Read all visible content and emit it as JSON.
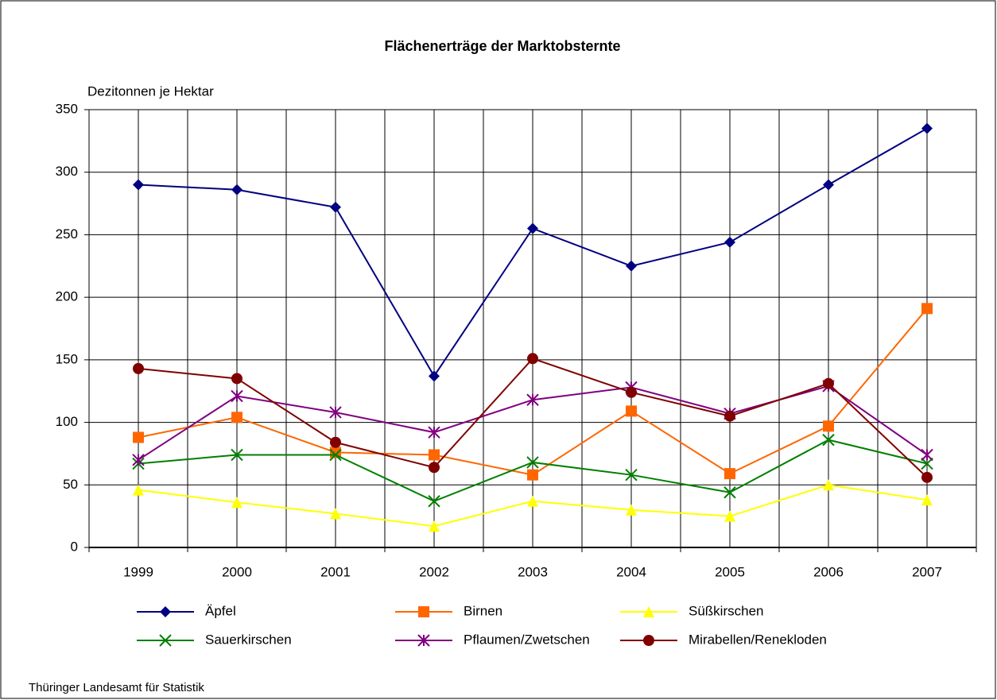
{
  "chart_data": {
    "type": "line",
    "title": "Flächenerträge der Marktobsternte",
    "y_label": "Dezitonnen je Hektar",
    "source": "Thüringer Landesamt für Statistik",
    "categories": [
      "1999",
      "2000",
      "2001",
      "2002",
      "2003",
      "2004",
      "2005",
      "2006",
      "2007"
    ],
    "series": [
      {
        "name": "Äpfel",
        "color": "#000080",
        "marker": "diamond",
        "values": [
          290,
          286,
          272,
          137,
          255,
          225,
          244,
          290,
          335
        ]
      },
      {
        "name": "Birnen",
        "color": "#ff6600",
        "marker": "square",
        "values": [
          88,
          104,
          76,
          74,
          58,
          109,
          59,
          97,
          191
        ]
      },
      {
        "name": "Süßkirschen",
        "color": "#ffff00",
        "marker": "triangle",
        "values": [
          46,
          36,
          27,
          17,
          37,
          30,
          25,
          50,
          38
        ]
      },
      {
        "name": "Sauerkirschen",
        "color": "#008000",
        "marker": "x",
        "values": [
          67,
          74,
          74,
          37,
          68,
          58,
          44,
          86,
          67
        ]
      },
      {
        "name": "Pflaumen/Zwetschen",
        "color": "#800080",
        "marker": "asterisk",
        "values": [
          70,
          121,
          108,
          92,
          118,
          128,
          107,
          129,
          74
        ]
      },
      {
        "name": "Mirabellen/Renekloden",
        "color": "#800000",
        "marker": "circle",
        "values": [
          143,
          135,
          84,
          64,
          151,
          124,
          105,
          131,
          56
        ]
      }
    ],
    "ylim": [
      0,
      350
    ],
    "yticks": [
      0,
      50,
      100,
      150,
      200,
      250,
      300,
      350
    ],
    "grid": true,
    "legend": "bottom"
  }
}
